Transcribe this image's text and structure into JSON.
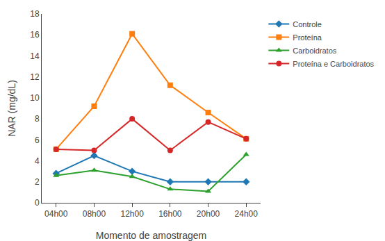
{
  "chart_data": {
    "type": "line",
    "categories": [
      "04h00",
      "08h00",
      "12h00",
      "16h00",
      "20h00",
      "24h00"
    ],
    "series": [
      {
        "name": "Controle",
        "values": [
          2.8,
          4.5,
          3.0,
          2.0,
          2.0,
          2.0
        ],
        "marker": "diamond",
        "line_style": "solid"
      },
      {
        "name": "Proteína",
        "values": [
          5.1,
          9.2,
          16.1,
          11.2,
          8.6,
          6.1
        ],
        "marker": "square",
        "line_style": "solid"
      },
      {
        "name": "Carboidratos",
        "values": [
          2.6,
          3.1,
          2.5,
          1.3,
          1.1,
          4.6
        ],
        "marker": "triangle-up",
        "line_style": "solid"
      },
      {
        "name": "Proteína e Carboidratos",
        "values": [
          5.1,
          5.0,
          8.0,
          5.0,
          7.7,
          6.1
        ],
        "marker": "circle",
        "line_style": "solid"
      }
    ],
    "x_label": "Momento de amostragem",
    "y_label": "NAR (mg/dL)",
    "ylim": [
      0,
      18
    ],
    "yticks": [
      0,
      2,
      4,
      6,
      8,
      10,
      12,
      14,
      16,
      18
    ],
    "grid": false,
    "legend": "right"
  }
}
